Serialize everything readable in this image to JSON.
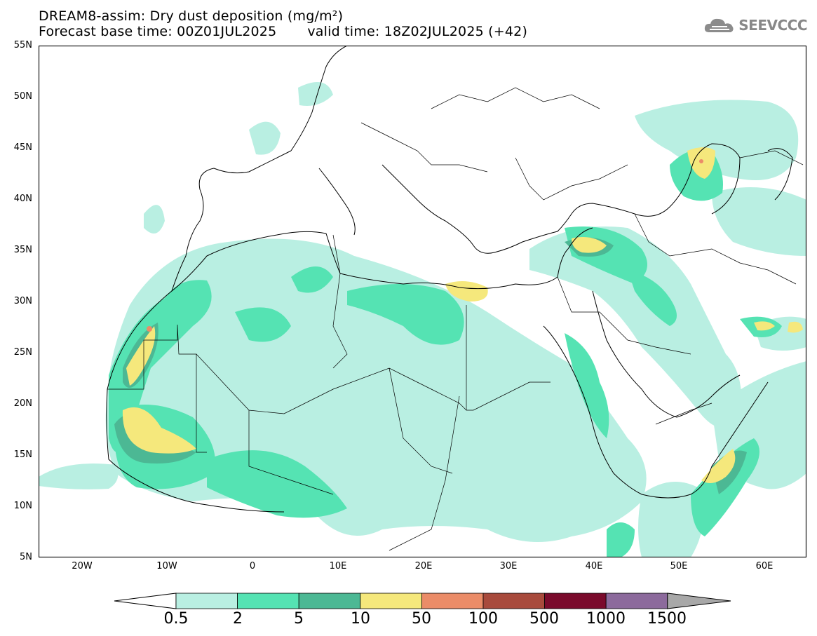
{
  "header": {
    "title_line1": "DREAM8-assim: Dry dust deposition (mg/m²)",
    "forecast_base": "Forecast base time: 00Z01JUL2025",
    "valid_time": "valid time: 18Z02JUL2025 (+42)",
    "logo_text": "SEEVCCC"
  },
  "map": {
    "lon_range": [
      -25,
      65
    ],
    "lat_range": [
      5,
      55
    ],
    "y_ticks": [
      "55N",
      "50N",
      "45N",
      "40N",
      "35N",
      "30N",
      "25N",
      "20N",
      "15N",
      "10N",
      "5N"
    ],
    "x_ticks": [
      "20W",
      "10W",
      "0",
      "10E",
      "20E",
      "30E",
      "40E",
      "50E",
      "60E"
    ]
  },
  "legend": {
    "labels": [
      "0.5",
      "2",
      "5",
      "10",
      "50",
      "100",
      "500",
      "1000",
      "1500"
    ],
    "colors": [
      "#ffffff",
      "#b9efe2",
      "#55e3b3",
      "#4cb894",
      "#f5e87c",
      "#eb8c68",
      "#a84a3c",
      "#7a0a2c",
      "#8c6a9c",
      "#a8a8a8"
    ]
  }
}
